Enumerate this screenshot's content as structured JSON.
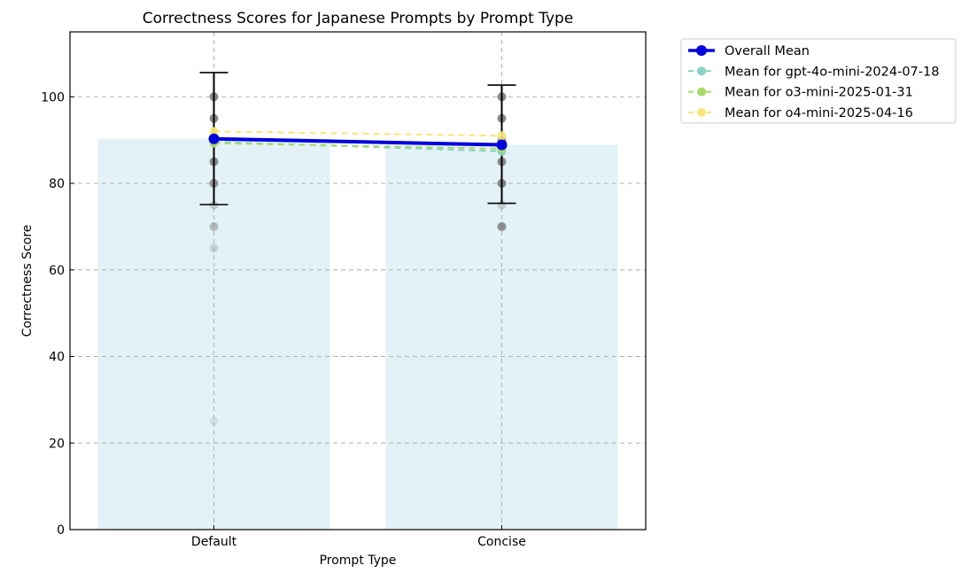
{
  "chart_data": {
    "type": "bar",
    "title": "Correctness Scores for Japanese Prompts by Prompt Type",
    "xlabel": "Prompt Type",
    "ylabel": "Correctness Score",
    "ylim": [
      0,
      115
    ],
    "yticks": [
      0,
      20,
      40,
      60,
      80,
      100
    ],
    "grid": true,
    "legend_position": "outside-top-right",
    "categories": [
      "Default",
      "Concise"
    ],
    "bar_color": "#e3f2f6",
    "bars": [
      90.3,
      88.9
    ],
    "error_bars": [
      {
        "category": "Default",
        "low": 75.1,
        "high": 105.6
      },
      {
        "category": "Concise",
        "low": 75.4,
        "high": 102.7
      }
    ],
    "points": {
      "Default": [
        100,
        95,
        90,
        90,
        85,
        80,
        75,
        70,
        65,
        25
      ],
      "Concise": [
        100,
        95,
        90,
        88,
        85,
        80,
        75,
        70
      ]
    },
    "point_alphas": {
      "Default": [
        0.85,
        0.85,
        0.85,
        0.85,
        0.85,
        0.75,
        0.3,
        0.45,
        0.25,
        0.15
      ],
      "Concise": [
        0.85,
        0.85,
        0.85,
        0.5,
        0.85,
        0.85,
        0.3,
        0.8
      ]
    },
    "series": [
      {
        "name": "Overall Mean",
        "values": [
          90.3,
          88.9
        ],
        "color": "#0000dd",
        "style": "solid"
      },
      {
        "name": "Mean for gpt-4o-mini-2024-07-18",
        "values": [
          89.6,
          87.4
        ],
        "color": "#88d1c4",
        "style": "dashed"
      },
      {
        "name": "Mean for o3-mini-2025-01-31",
        "values": [
          89.3,
          88.0
        ],
        "color": "#a7d96a",
        "style": "dashed"
      },
      {
        "name": "Mean for o4-mini-2025-04-16",
        "values": [
          92.0,
          91.0
        ],
        "color": "#f7e67a",
        "style": "dashed"
      }
    ]
  }
}
